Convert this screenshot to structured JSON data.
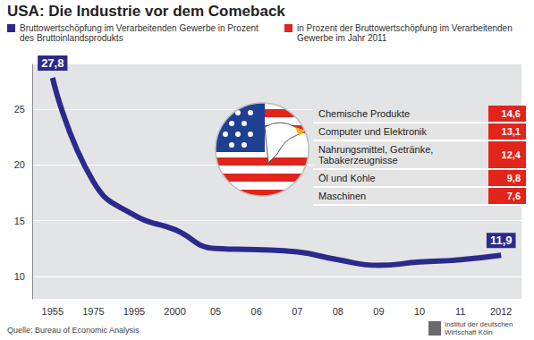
{
  "chart_data": [
    {
      "type": "line",
      "title": "USA: Die Industrie vor dem Comeback",
      "categories": [
        "1955",
        "1975",
        "1995",
        "2000",
        "05",
        "06",
        "07",
        "08",
        "09",
        "10",
        "11",
        "2012"
      ],
      "series": [
        {
          "name": "Bruttowertschöpfung im Verarbeitenden Gewerbe in Prozent des Bruttoinlandsprodukts",
          "color": "#2b2a8c",
          "values": [
            27.8,
            18.5,
            15.5,
            14.2,
            12.5,
            12.4,
            12.2,
            11.5,
            11.0,
            11.3,
            11.5,
            11.9
          ],
          "value_labels": [
            "27,8",
            null,
            null,
            null,
            null,
            null,
            null,
            null,
            null,
            null,
            null,
            "11,9"
          ]
        }
      ],
      "ylim": [
        8,
        29
      ],
      "yticks": [
        10,
        15,
        20,
        25
      ],
      "grid": true,
      "data_labels": true,
      "annotations": [
        "Quelle: Bureau of Economic Analysis",
        "Institut der deutschen Wirtschaft Köln"
      ]
    },
    {
      "type": "table",
      "title": "in Prozent der Bruttowertschöpfung im Verarbeitenden Gewerbe im Jahr 2011",
      "color": "#e3241b",
      "categories": [
        "Chemische Produkte",
        "Computer und Elektronik",
        "Nahrungsmittel, Getränke, Tabakerzeugnisse",
        "Öl und Kohle",
        "Maschinen"
      ],
      "values": [
        14.6,
        13.1,
        12.4,
        9.8,
        7.6
      ],
      "value_labels": [
        "14,6",
        "13,1",
        "12,4",
        "9,8",
        "7,6"
      ]
    }
  ]
}
